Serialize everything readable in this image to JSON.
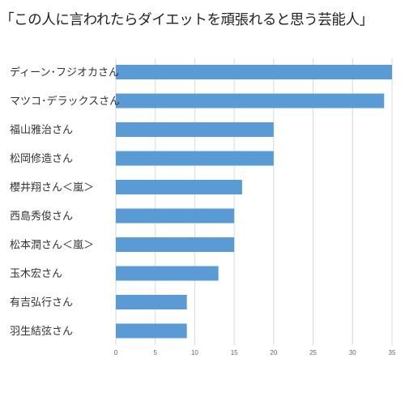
{
  "chart_data": {
    "type": "bar",
    "orientation": "horizontal",
    "title": "「この人に言われたらダイエットを頑張れると思う芸能人」",
    "categories": [
      "ディーン･フジオカさん",
      "マツコ･デラックスさん",
      "福山雅治さん",
      "松岡修造さん",
      "櫻井翔さん＜嵐＞",
      "西島秀俊さん",
      "松本潤さん＜嵐＞",
      "玉木宏さん",
      "有吉弘行さん",
      "羽生結弦さん"
    ],
    "values": [
      35,
      34,
      20,
      20,
      16,
      15,
      15,
      13,
      9,
      9
    ],
    "xlim": [
      0,
      35
    ],
    "xticks": [
      "0",
      "5",
      "10",
      "15",
      "20",
      "25",
      "30",
      "35"
    ],
    "grid": true,
    "bar_color": "#5b9bd5",
    "grid_color": "#d9d9d9"
  }
}
